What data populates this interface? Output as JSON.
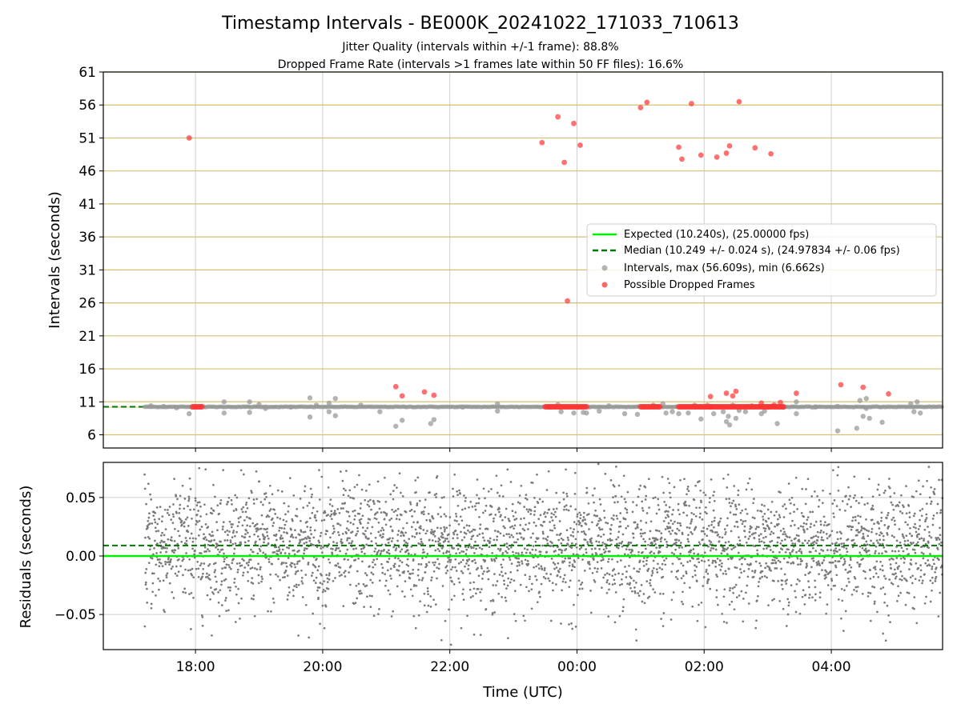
{
  "chart_data": [
    {
      "type": "scatter",
      "title": "Timestamp Intervals - BE000K_20241022_171033_710613",
      "subtitle_lines": [
        "Jitter Quality (intervals within +/-1 frame): 88.8%",
        "Dropped Frame Rate (intervals >1 frames late within 50 FF files): 16.6%"
      ],
      "ylabel": "Intervals (seconds)",
      "ylim": [
        4,
        61
      ],
      "yticks": [
        "61",
        "56",
        "51",
        "46",
        "41",
        "36",
        "31",
        "26",
        "21",
        "16",
        "11",
        "6"
      ],
      "ytick_values": [
        61,
        56,
        51,
        46,
        41,
        36,
        31,
        26,
        21,
        16,
        11,
        6
      ],
      "xlim_hours": [
        16.55,
        29.75
      ],
      "x_grid_hours": [
        18,
        20,
        22,
        24,
        26,
        28
      ],
      "grid": true,
      "legend_position": "center-right",
      "expected_line": {
        "label": "Expected (10.240s), (25.00000 fps)",
        "y": 10.24,
        "color": "#00ee00"
      },
      "median_line": {
        "label": "Median (10.249 +/- 0.024 s), (24.97834 +/- 0.06 fps)",
        "y": 10.249,
        "color": "#007700"
      },
      "intervals": {
        "label": "Intervals, max (56.609s), min (6.662s)",
        "color": "#999999",
        "baseline_range_hours": [
          17.2,
          29.75
        ],
        "points": [
          [
            17.3,
            10.4
          ],
          [
            17.5,
            10.3
          ],
          [
            17.7,
            10.1
          ],
          [
            17.9,
            9.2
          ],
          [
            18.1,
            10.3
          ],
          [
            18.45,
            11.0
          ],
          [
            18.45,
            9.3
          ],
          [
            18.85,
            11.0
          ],
          [
            18.85,
            9.4
          ],
          [
            19.0,
            10.6
          ],
          [
            19.1,
            10.0
          ],
          [
            19.5,
            10.2
          ],
          [
            19.8,
            11.6
          ],
          [
            19.8,
            8.7
          ],
          [
            19.9,
            10.5
          ],
          [
            20.1,
            10.8
          ],
          [
            20.1,
            9.5
          ],
          [
            20.2,
            11.5
          ],
          [
            20.2,
            8.9
          ],
          [
            20.6,
            10.5
          ],
          [
            20.9,
            9.5
          ],
          [
            21.15,
            7.3
          ],
          [
            21.25,
            8.2
          ],
          [
            21.7,
            7.7
          ],
          [
            21.75,
            8.3
          ],
          [
            22.2,
            10.2
          ],
          [
            22.75,
            10.7
          ],
          [
            22.75,
            9.6
          ],
          [
            23.7,
            10.6
          ],
          [
            23.75,
            9.5
          ],
          [
            23.95,
            9.3
          ],
          [
            24.1,
            9.4
          ],
          [
            24.15,
            9.3
          ],
          [
            24.35,
            9.6
          ],
          [
            24.5,
            10.4
          ],
          [
            24.75,
            9.2
          ],
          [
            24.95,
            9.1
          ],
          [
            25.2,
            10.5
          ],
          [
            25.35,
            10.7
          ],
          [
            25.4,
            9.3
          ],
          [
            25.5,
            9.5
          ],
          [
            25.6,
            9.2
          ],
          [
            25.75,
            9.3
          ],
          [
            25.85,
            10.5
          ],
          [
            25.95,
            8.4
          ],
          [
            26.05,
            10.5
          ],
          [
            26.15,
            9.2
          ],
          [
            26.3,
            9.5
          ],
          [
            26.35,
            8.0
          ],
          [
            26.38,
            8.8
          ],
          [
            26.4,
            7.5
          ],
          [
            26.45,
            10.5
          ],
          [
            26.5,
            8.5
          ],
          [
            26.55,
            9.7
          ],
          [
            26.65,
            9.5
          ],
          [
            26.75,
            10.4
          ],
          [
            26.9,
            9.2
          ],
          [
            26.95,
            9.6
          ],
          [
            27.05,
            10.3
          ],
          [
            27.15,
            7.7
          ],
          [
            27.25,
            10.2
          ],
          [
            27.45,
            11.0
          ],
          [
            27.45,
            9.2
          ],
          [
            27.75,
            10.2
          ],
          [
            28.1,
            10.3
          ],
          [
            28.1,
            6.6
          ],
          [
            28.4,
            7.0
          ],
          [
            28.45,
            11.2
          ],
          [
            28.55,
            11.5
          ],
          [
            28.55,
            10.0
          ],
          [
            28.5,
            8.8
          ],
          [
            28.6,
            8.5
          ],
          [
            28.8,
            7.9
          ],
          [
            29.25,
            10.7
          ],
          [
            29.3,
            9.5
          ],
          [
            29.35,
            11.0
          ],
          [
            29.4,
            9.3
          ]
        ]
      },
      "dropped": {
        "label": "Possible Dropped Frames",
        "color": "#ff3333",
        "points": [
          [
            17.9,
            51.0
          ],
          [
            21.15,
            13.3
          ],
          [
            21.25,
            11.9
          ],
          [
            21.6,
            12.5
          ],
          [
            21.75,
            12.0
          ],
          [
            23.45,
            50.3
          ],
          [
            23.7,
            54.2
          ],
          [
            23.8,
            47.3
          ],
          [
            23.85,
            26.3
          ],
          [
            23.95,
            53.2
          ],
          [
            24.05,
            49.9
          ],
          [
            25.0,
            55.6
          ],
          [
            25.1,
            56.4
          ],
          [
            25.6,
            49.6
          ],
          [
            25.65,
            47.8
          ],
          [
            25.8,
            56.2
          ],
          [
            25.95,
            48.4
          ],
          [
            26.1,
            11.8
          ],
          [
            26.2,
            48.1
          ],
          [
            26.35,
            48.7
          ],
          [
            26.35,
            12.3
          ],
          [
            26.4,
            49.8
          ],
          [
            26.45,
            11.9
          ],
          [
            26.5,
            12.6
          ],
          [
            26.55,
            56.5
          ],
          [
            26.8,
            49.5
          ],
          [
            26.9,
            10.8
          ],
          [
            27.05,
            48.6
          ],
          [
            27.1,
            10.5
          ],
          [
            27.2,
            10.9
          ],
          [
            27.45,
            12.3
          ],
          [
            28.15,
            13.6
          ],
          [
            28.5,
            13.2
          ],
          [
            28.9,
            12.2
          ]
        ],
        "clusters_hours": [
          [
            17.95,
            18.1
          ],
          [
            23.5,
            24.15
          ],
          [
            25.0,
            25.3
          ],
          [
            25.6,
            26.1
          ],
          [
            26.1,
            27.0
          ],
          [
            27.0,
            27.25
          ]
        ],
        "cluster_y": 10.24
      }
    },
    {
      "type": "scatter",
      "ylabel": "Residuals (seconds)",
      "xlabel": "Time (UTC)",
      "ylim": [
        -0.08,
        0.08
      ],
      "yticks": [
        "0.05",
        "0.00",
        "−0.05"
      ],
      "ytick_values": [
        0.05,
        0.0,
        -0.05
      ],
      "xticks": [
        "18:00",
        "20:00",
        "22:00",
        "00:00",
        "02:00",
        "04:00"
      ],
      "xtick_hours": [
        18,
        20,
        22,
        24,
        26,
        28
      ],
      "xlim_hours": [
        16.55,
        29.75
      ],
      "grid": true,
      "residual_points_range_hours": [
        17.2,
        29.75
      ],
      "residual_spread_sd": 0.027,
      "residual_offset": 0.009,
      "expected_line": {
        "y": 0.0,
        "color": "#00ee00"
      },
      "median_line": {
        "y": 0.009,
        "color": "#007700"
      },
      "points_color": "#7a7a7a"
    }
  ]
}
